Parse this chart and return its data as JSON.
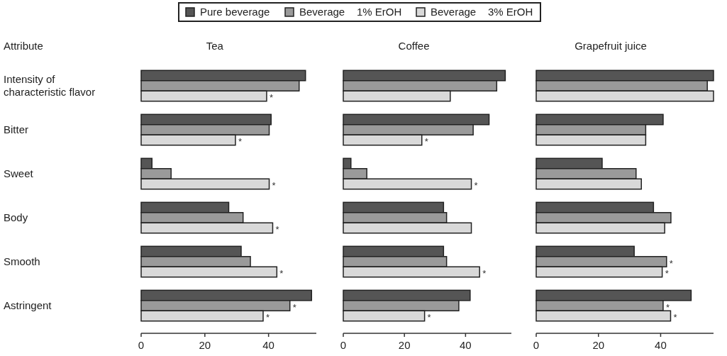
{
  "chart_data": [
    {
      "type": "bar",
      "orientation": "horizontal",
      "title": "Tea",
      "ylabel": "Attribute",
      "legend": "top",
      "categories": [
        "Intensity of characteristic flavor",
        "Bitter",
        "Sweet",
        "Body",
        "Smooth",
        "Astringent"
      ],
      "xlim": [
        0,
        55
      ],
      "xticks": [
        0,
        20,
        40
      ],
      "series": [
        {
          "name": "Pure beverage",
          "color": "#555555",
          "values": [
            51.6,
            40.8,
            3.4,
            27.5,
            31.4,
            53.5
          ]
        },
        {
          "name": "Beverage    1% ErOH",
          "color": "#9a9a9a",
          "values": [
            49.6,
            40.2,
            9.4,
            32,
            34.3,
            46.7
          ],
          "value_labels": [
            null,
            null,
            null,
            null,
            null,
            "*"
          ]
        },
        {
          "name": "Beverage    3% ErOH",
          "color": "#d9d9d9",
          "values": [
            39.4,
            29.6,
            40.2,
            41.3,
            42.6,
            38.3
          ],
          "value_labels": [
            "*",
            "*",
            "*",
            "*",
            "*",
            "*"
          ]
        }
      ]
    },
    {
      "type": "bar",
      "orientation": "horizontal",
      "title": "Coffee",
      "tick_labels": "x",
      "categories": [
        null,
        null,
        null,
        null,
        null,
        null
      ],
      "xlim": [
        0,
        55
      ],
      "xticks": [
        0,
        20,
        40
      ],
      "series": [
        {
          "color": "#555555",
          "values": [
            53,
            47.7,
            2.5,
            32.8,
            32.8,
            41.5
          ]
        },
        {
          "color": "#9a9a9a",
          "values": [
            50.2,
            42.5,
            7.7,
            33.8,
            33.8,
            37.8
          ]
        },
        {
          "color": "#d9d9d9",
          "values": [
            35,
            25.7,
            41.9,
            41.9,
            44.6,
            26.6
          ],
          "value_labels": [
            null,
            "*",
            "*",
            null,
            "*",
            "*"
          ]
        }
      ]
    },
    {
      "type": "bar",
      "orientation": "horizontal",
      "title": "Grapefruit juice",
      "tick_labels": "x",
      "categories": [
        null,
        null,
        null,
        null,
        null,
        null
      ],
      "xlim": [
        0,
        57
      ],
      "xticks": [
        0,
        20,
        40
      ],
      "series": [
        {
          "color": "#555555",
          "values": [
            57,
            40.8,
            21.2,
            37.7,
            31.5,
            49.8
          ]
        },
        {
          "color": "#9a9a9a",
          "values": [
            55,
            35.2,
            32.1,
            43.3,
            41.9,
            40.8
          ],
          "value_labels": [
            null,
            null,
            null,
            null,
            "*",
            "*"
          ]
        },
        {
          "color": "#d9d9d9",
          "values": [
            57,
            35.2,
            33.8,
            41.3,
            40.5,
            43.2
          ],
          "value_labels": [
            null,
            null,
            null,
            null,
            "*",
            "*"
          ]
        }
      ]
    }
  ]
}
